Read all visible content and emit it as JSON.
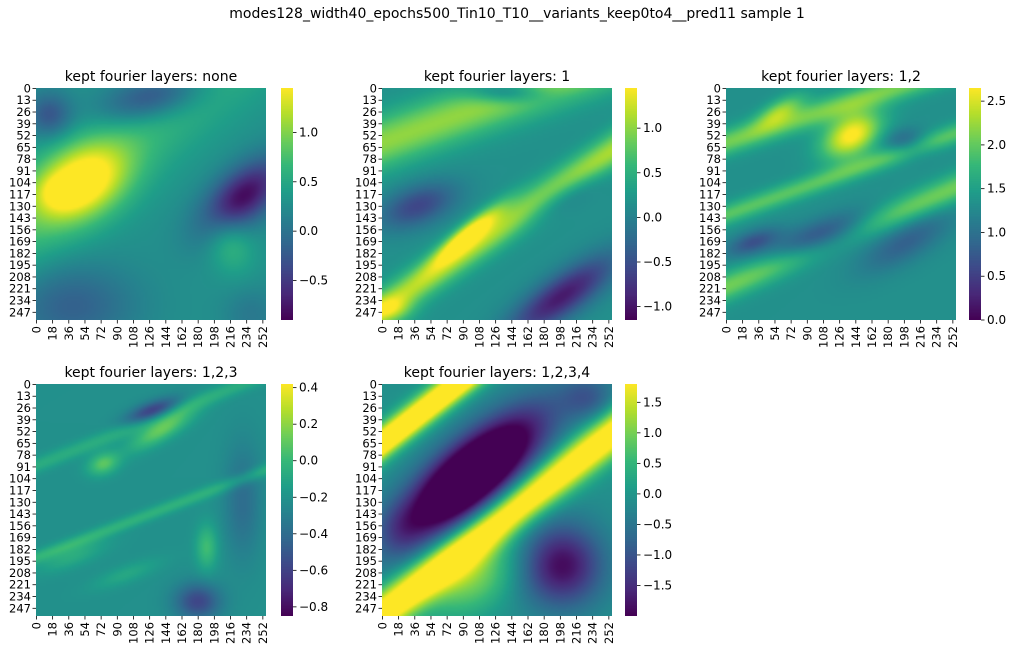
{
  "figure": {
    "suptitle": "modes128_width40_epochs500_Tin10_T10__variants_keep0to4__pred11 sample 1"
  },
  "colormap": "viridis",
  "viridis_stops": [
    "#440154",
    "#482878",
    "#3e4989",
    "#31688e",
    "#26828e",
    "#1f9e89",
    "#35b779",
    "#6ece58",
    "#b5de2b",
    "#fde725"
  ],
  "chart_data": [
    {
      "type": "heatmap",
      "title": "kept fourier layers: none",
      "grid_size": [
        256,
        256
      ],
      "y_ticks": [
        "0",
        "13",
        "26",
        "39",
        "52",
        "65",
        "78",
        "91",
        "104",
        "117",
        "130",
        "143",
        "156",
        "169",
        "182",
        "195",
        "208",
        "221",
        "234",
        "247"
      ],
      "x_ticks": [
        "0",
        "18",
        "36",
        "54",
        "72",
        "90",
        "108",
        "126",
        "144",
        "162",
        "180",
        "198",
        "216",
        "234",
        "252"
      ],
      "vmin": -0.9,
      "vmax": 1.45,
      "colorbar_ticks": [
        "1.0",
        "0.5",
        "0.0",
        "−0.5"
      ],
      "colorbar_tick_values": [
        1.0,
        0.5,
        0.0,
        -0.5
      ],
      "features": [
        {
          "kind": "band",
          "x0": 0,
          "y0": 140,
          "x1": 250,
          "y1": -60,
          "width": 70,
          "value": 0.35
        },
        {
          "kind": "blob",
          "x": 50,
          "y": 105,
          "rx": 55,
          "ry": 38,
          "angle": -30,
          "value": 1.05
        },
        {
          "kind": "blob",
          "x": 25,
          "y": 115,
          "rx": 22,
          "ry": 18,
          "angle": 0,
          "value": 0.25
        },
        {
          "kind": "blob",
          "x": 230,
          "y": 120,
          "rx": 55,
          "ry": 28,
          "angle": -40,
          "value": -1.0
        },
        {
          "kind": "blob",
          "x": 130,
          "y": 10,
          "rx": 60,
          "ry": 25,
          "angle": -15,
          "value": -0.7
        },
        {
          "kind": "blob",
          "x": 15,
          "y": 30,
          "rx": 25,
          "ry": 25,
          "angle": 0,
          "value": -0.5
        },
        {
          "kind": "blob",
          "x": 40,
          "y": 240,
          "rx": 70,
          "ry": 45,
          "angle": 0,
          "value": -0.4
        },
        {
          "kind": "blob",
          "x": 240,
          "y": 250,
          "rx": 30,
          "ry": 30,
          "angle": 0,
          "value": -0.2
        },
        {
          "kind": "blob",
          "x": 215,
          "y": 170,
          "rx": 25,
          "ry": 35,
          "angle": -20,
          "value": 0.35
        }
      ]
    },
    {
      "type": "heatmap",
      "title": "kept fourier layers: 1",
      "grid_size": [
        256,
        256
      ],
      "y_ticks": [
        "0",
        "13",
        "26",
        "39",
        "52",
        "65",
        "78",
        "91",
        "104",
        "117",
        "130",
        "143",
        "156",
        "169",
        "182",
        "195",
        "208",
        "221",
        "234",
        "247"
      ],
      "x_ticks": [
        "0",
        "18",
        "36",
        "54",
        "72",
        "90",
        "108",
        "126",
        "144",
        "162",
        "180",
        "198",
        "216",
        "234",
        "252"
      ],
      "vmin": -1.15,
      "vmax": 1.45,
      "colorbar_ticks": [
        "1.0",
        "0.5",
        "0.0",
        "−0.5",
        "−1.0"
      ],
      "colorbar_tick_values": [
        1.0,
        0.5,
        0.0,
        -0.5,
        -1.0
      ],
      "features": [
        {
          "kind": "band",
          "x0": 0,
          "y0": 60,
          "x1": 256,
          "y1": -30,
          "width": 40,
          "value": 0.7
        },
        {
          "kind": "band",
          "x0": 20,
          "y0": 230,
          "x1": 256,
          "y1": 70,
          "width": 26,
          "value": 0.8
        },
        {
          "kind": "blob",
          "x": 95,
          "y": 162,
          "rx": 48,
          "ry": 11,
          "angle": -40,
          "value": 1.0
        },
        {
          "kind": "blob",
          "x": 200,
          "y": 230,
          "rx": 70,
          "ry": 22,
          "angle": -35,
          "value": -0.9
        },
        {
          "kind": "blob",
          "x": 140,
          "y": 5,
          "rx": 40,
          "ry": 12,
          "angle": 0,
          "value": -0.6
        },
        {
          "kind": "blob",
          "x": 40,
          "y": 130,
          "rx": 45,
          "ry": 22,
          "angle": -20,
          "value": -0.6
        },
        {
          "kind": "blob",
          "x": 200,
          "y": 120,
          "rx": 50,
          "ry": 15,
          "angle": -30,
          "value": -0.4
        },
        {
          "kind": "blob",
          "x": 10,
          "y": 245,
          "rx": 25,
          "ry": 15,
          "angle": 0,
          "value": 0.4
        }
      ]
    },
    {
      "type": "heatmap",
      "title": "kept fourier layers: 1,2",
      "grid_size": [
        256,
        256
      ],
      "y_ticks": [
        "0",
        "13",
        "26",
        "39",
        "52",
        "65",
        "78",
        "91",
        "104",
        "117",
        "130",
        "143",
        "156",
        "169",
        "182",
        "195",
        "208",
        "221",
        "234",
        "247"
      ],
      "x_ticks": [
        "0",
        "18",
        "36",
        "54",
        "72",
        "90",
        "108",
        "126",
        "144",
        "162",
        "180",
        "198",
        "216",
        "234",
        "252"
      ],
      "vmin": 0.0,
      "vmax": 2.65,
      "colorbar_ticks": [
        "2.5",
        "2.0",
        "1.5",
        "1.0",
        "0.5",
        "0.0"
      ],
      "colorbar_tick_values": [
        2.5,
        2.0,
        1.5,
        1.0,
        0.5,
        0.0
      ],
      "features": [
        {
          "kind": "blob",
          "x": 140,
          "y": 52,
          "rx": 35,
          "ry": 22,
          "angle": -30,
          "value": 1.1
        },
        {
          "kind": "band",
          "x0": 0,
          "y0": 60,
          "x1": 220,
          "y1": -10,
          "width": 20,
          "value": 0.6
        },
        {
          "kind": "band",
          "x0": 0,
          "y0": 140,
          "x1": 256,
          "y1": 50,
          "width": 16,
          "value": 0.5
        },
        {
          "kind": "band",
          "x0": 10,
          "y0": 215,
          "x1": 256,
          "y1": 110,
          "width": 22,
          "value": 0.6
        },
        {
          "kind": "blob",
          "x": 110,
          "y": 165,
          "rx": 60,
          "ry": 18,
          "angle": -20,
          "value": -0.8
        },
        {
          "kind": "blob",
          "x": 30,
          "y": 170,
          "rx": 30,
          "ry": 12,
          "angle": -20,
          "value": -0.5
        },
        {
          "kind": "blob",
          "x": 200,
          "y": 170,
          "rx": 55,
          "ry": 20,
          "angle": -30,
          "value": -0.4
        },
        {
          "kind": "blob",
          "x": 200,
          "y": 60,
          "rx": 25,
          "ry": 15,
          "angle": 0,
          "value": -0.4
        },
        {
          "kind": "blob",
          "x": 60,
          "y": 25,
          "rx": 30,
          "ry": 12,
          "angle": -30,
          "value": 0.6
        }
      ]
    },
    {
      "type": "heatmap",
      "title": "kept fourier layers: 1,2,3",
      "grid_size": [
        256,
        256
      ],
      "y_ticks": [
        "0",
        "13",
        "26",
        "39",
        "52",
        "65",
        "78",
        "91",
        "104",
        "117",
        "130",
        "143",
        "156",
        "169",
        "182",
        "195",
        "208",
        "221",
        "234",
        "247"
      ],
      "x_ticks": [
        "0",
        "18",
        "36",
        "54",
        "72",
        "90",
        "108",
        "126",
        "144",
        "162",
        "180",
        "198",
        "216",
        "234",
        "252"
      ],
      "vmin": -0.85,
      "vmax": 0.42,
      "colorbar_ticks": [
        "0.4",
        "0.2",
        "0.0",
        "−0.2",
        "−0.4",
        "−0.6",
        "−0.8"
      ],
      "colorbar_tick_values": [
        0.4,
        0.2,
        0.0,
        -0.2,
        -0.4,
        -0.6,
        -0.8
      ],
      "features": [
        {
          "kind": "blob",
          "x": 140,
          "y": 50,
          "rx": 40,
          "ry": 12,
          "angle": -30,
          "value": 0.55
        },
        {
          "kind": "blob",
          "x": 75,
          "y": 88,
          "rx": 18,
          "ry": 12,
          "angle": -20,
          "value": 0.5
        },
        {
          "kind": "blob",
          "x": 130,
          "y": 30,
          "rx": 30,
          "ry": 10,
          "angle": -20,
          "value": -0.7
        },
        {
          "kind": "band",
          "x0": 0,
          "y0": 90,
          "x1": 256,
          "y1": -10,
          "width": 12,
          "value": 0.25
        },
        {
          "kind": "band",
          "x0": 30,
          "y0": 180,
          "x1": 256,
          "y1": 95,
          "width": 10,
          "value": 0.3
        },
        {
          "kind": "blob",
          "x": 190,
          "y": 180,
          "rx": 12,
          "ry": 25,
          "angle": 0,
          "value": 0.4
        },
        {
          "kind": "blob",
          "x": 180,
          "y": 240,
          "rx": 25,
          "ry": 20,
          "angle": 0,
          "value": -0.6
        },
        {
          "kind": "blob",
          "x": 230,
          "y": 130,
          "rx": 20,
          "ry": 60,
          "angle": 0,
          "value": -0.3
        },
        {
          "kind": "blob",
          "x": 40,
          "y": 190,
          "rx": 40,
          "ry": 12,
          "angle": -20,
          "value": 0.25
        },
        {
          "kind": "blob",
          "x": 100,
          "y": 210,
          "rx": 40,
          "ry": 10,
          "angle": -20,
          "value": 0.2
        }
      ]
    },
    {
      "type": "heatmap",
      "title": "kept fourier layers: 1,2,3,4",
      "grid_size": [
        256,
        256
      ],
      "y_ticks": [
        "0",
        "13",
        "26",
        "39",
        "52",
        "65",
        "78",
        "91",
        "104",
        "117",
        "130",
        "143",
        "156",
        "169",
        "182",
        "195",
        "208",
        "221",
        "234",
        "247"
      ],
      "x_ticks": [
        "0",
        "18",
        "36",
        "54",
        "72",
        "90",
        "108",
        "126",
        "144",
        "162",
        "180",
        "198",
        "216",
        "234",
        "252"
      ],
      "vmin": -2.0,
      "vmax": 1.8,
      "colorbar_ticks": [
        "1.5",
        "1.0",
        "0.5",
        "0.0",
        "−0.5",
        "−1.0",
        "−1.5"
      ],
      "colorbar_tick_values": [
        1.5,
        1.0,
        0.5,
        0.0,
        -0.5,
        -1.0,
        -1.5
      ],
      "features": [
        {
          "kind": "band",
          "x0": 0,
          "y0": 65,
          "x1": 110,
          "y1": -20,
          "width": 22,
          "value": 1.6
        },
        {
          "kind": "band",
          "x0": 30,
          "y0": 230,
          "x1": 256,
          "y1": 55,
          "width": 30,
          "value": 1.4
        },
        {
          "kind": "blob",
          "x": 100,
          "y": 215,
          "rx": 55,
          "ry": 35,
          "angle": -30,
          "value": 0.6
        },
        {
          "kind": "blob",
          "x": 100,
          "y": 100,
          "rx": 95,
          "ry": 35,
          "angle": -40,
          "value": -2.0
        },
        {
          "kind": "blob",
          "x": 200,
          "y": 200,
          "rx": 45,
          "ry": 45,
          "angle": 0,
          "value": -1.0
        },
        {
          "kind": "blob",
          "x": 230,
          "y": 15,
          "rx": 30,
          "ry": 25,
          "angle": 0,
          "value": -0.4
        },
        {
          "kind": "blob",
          "x": 20,
          "y": 160,
          "rx": 25,
          "ry": 30,
          "angle": 0,
          "value": -0.2
        }
      ]
    }
  ]
}
